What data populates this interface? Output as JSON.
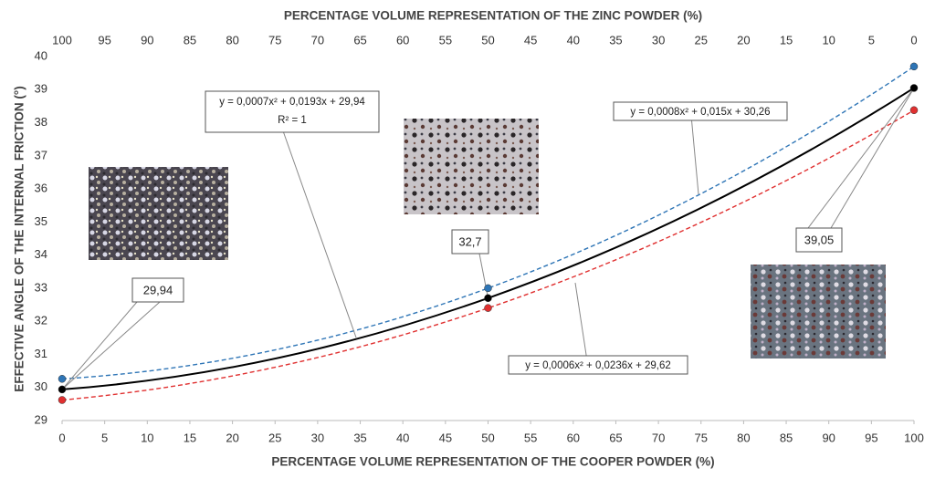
{
  "chart_data": {
    "type": "line",
    "x_label": "PERCENTAGE VOLUME REPRESENTATION OF THE COOPER POWDER (%)",
    "x2_label": "PERCENTAGE VOLUME REPRESENTATION OF THE ZINC POWDER (%)",
    "y_label": "EFFECTIVE ANGLE OF THE INTERNAL FRICTION (°)",
    "x": [
      0,
      50,
      100
    ],
    "series": [
      {
        "color": "#000000",
        "dash": false,
        "values": [
          29.94,
          32.7,
          39.05
        ],
        "value_labels": [
          "29,94",
          "32,7",
          "39,05"
        ]
      },
      {
        "color": "#2e75b6",
        "dash": true,
        "values": [
          30.26,
          33.0,
          39.7
        ]
      },
      {
        "color": "#e03030",
        "dash": true,
        "values": [
          29.62,
          32.4,
          38.38
        ]
      }
    ],
    "annotations": [
      {
        "text": "y = 0,0007x² + 0,0193x + 29,94",
        "text2": "R² = 1"
      },
      {
        "text": "y = 0,0008x² + 0,015x + 30,26"
      },
      {
        "text": "y = 0,0006x² + 0,0236x + 29,62"
      }
    ],
    "xlim": [
      0,
      100
    ],
    "xticks": [
      0,
      5,
      10,
      15,
      20,
      25,
      30,
      35,
      40,
      45,
      50,
      55,
      60,
      65,
      70,
      75,
      80,
      85,
      90,
      95,
      100
    ],
    "x2lim": [
      100,
      0
    ],
    "x2ticks": [
      100,
      95,
      90,
      85,
      80,
      75,
      70,
      65,
      60,
      55,
      50,
      45,
      40,
      35,
      30,
      25,
      20,
      15,
      10,
      5,
      0
    ],
    "ylim": [
      29,
      40
    ],
    "yticks": [
      29,
      30,
      31,
      32,
      33,
      34,
      35,
      36,
      37,
      38,
      39,
      40
    ],
    "grid": false
  }
}
